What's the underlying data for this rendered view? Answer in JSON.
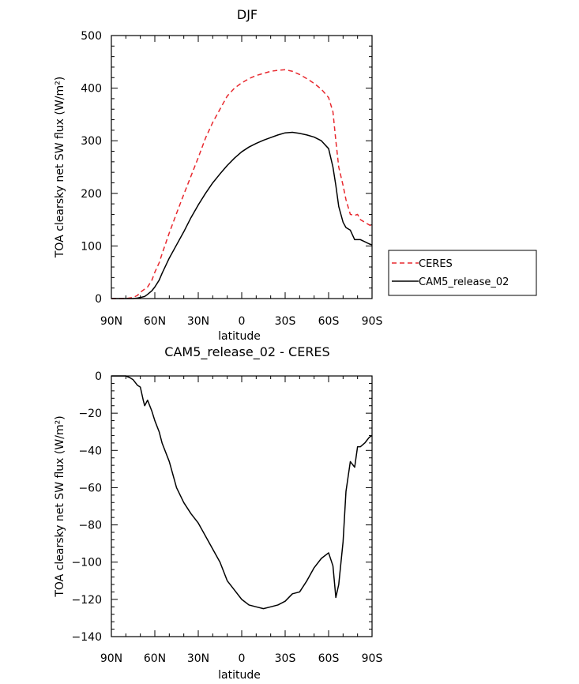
{
  "chart_data": [
    {
      "type": "line",
      "title": "DJF",
      "xlabel": "latitude",
      "ylabel": "TOA clearsky net SW flux (W/m²)",
      "xlim": [
        90,
        -90
      ],
      "ylim": [
        0,
        500
      ],
      "xticks": [
        90,
        60,
        30,
        0,
        -30,
        -60,
        -90
      ],
      "xtick_labels": [
        "90N",
        "60N",
        "30N",
        "0",
        "30S",
        "60S",
        "90S"
      ],
      "yticks": [
        0,
        100,
        200,
        300,
        400,
        500
      ],
      "ytick_labels": [
        "0",
        "100",
        "200",
        "300",
        "400",
        "500"
      ],
      "legend": {
        "placement": "right-outside-bottom"
      },
      "series": [
        {
          "name": "CERES",
          "color": "#e8282e",
          "style": "dashed",
          "x": [
            90,
            85,
            80,
            75,
            72,
            70,
            67,
            65,
            62,
            60,
            57,
            55,
            50,
            45,
            40,
            35,
            30,
            25,
            20,
            15,
            10,
            5,
            0,
            -5,
            -10,
            -15,
            -20,
            -25,
            -30,
            -35,
            -40,
            -45,
            -50,
            -55,
            -60,
            -63,
            -65,
            -67,
            -70,
            -72,
            -75,
            -78,
            -80,
            -82,
            -85,
            -88,
            -90
          ],
          "y": [
            0,
            0,
            0,
            2,
            6,
            12,
            18,
            22,
            35,
            50,
            68,
            85,
            125,
            162,
            198,
            233,
            268,
            305,
            335,
            360,
            385,
            400,
            410,
            418,
            424,
            428,
            432,
            434,
            435,
            432,
            426,
            418,
            409,
            398,
            382,
            355,
            300,
            250,
            215,
            188,
            160,
            158,
            160,
            150,
            145,
            140,
            138
          ]
        },
        {
          "name": "CAM5_release_02",
          "color": "#000000",
          "style": "solid",
          "x": [
            90,
            85,
            80,
            75,
            72,
            70,
            67,
            65,
            62,
            60,
            57,
            55,
            50,
            45,
            40,
            35,
            30,
            25,
            20,
            15,
            10,
            5,
            0,
            -5,
            -10,
            -15,
            -20,
            -25,
            -30,
            -35,
            -40,
            -45,
            -50,
            -55,
            -60,
            -63,
            -65,
            -67,
            -70,
            -72,
            -75,
            -78,
            -80,
            -82,
            -85,
            -88,
            -90
          ],
          "y": [
            0,
            0,
            0,
            0,
            1,
            2,
            4,
            8,
            15,
            22,
            35,
            48,
            77,
            102,
            127,
            154,
            178,
            200,
            220,
            237,
            253,
            267,
            279,
            288,
            295,
            301,
            306,
            311,
            315,
            316,
            314,
            311,
            307,
            300,
            285,
            250,
            215,
            175,
            145,
            135,
            130,
            112,
            112,
            112,
            108,
            104,
            102
          ]
        }
      ]
    },
    {
      "type": "line",
      "title": "CAM5_release_02 - CERES",
      "xlabel": "latitude",
      "ylabel": "TOA clearsky net SW flux (W/m²)",
      "xlim": [
        90,
        -90
      ],
      "ylim": [
        -140,
        0
      ],
      "xticks": [
        90,
        60,
        30,
        0,
        -30,
        -60,
        -90
      ],
      "xtick_labels": [
        "90N",
        "60N",
        "30N",
        "0",
        "30S",
        "60S",
        "90S"
      ],
      "yticks": [
        0,
        -20,
        -40,
        -60,
        -80,
        -100,
        -120,
        -140
      ],
      "ytick_labels": [
        "0",
        "−20",
        "−40",
        "−60",
        "−80",
        "−100",
        "−120",
        "−140"
      ],
      "series": [
        {
          "name": "",
          "color": "#000000",
          "style": "solid",
          "x": [
            90,
            85,
            80,
            77,
            75,
            72,
            70,
            68,
            67,
            65,
            62,
            60,
            57,
            55,
            50,
            45,
            40,
            35,
            30,
            25,
            20,
            15,
            10,
            5,
            0,
            -5,
            -10,
            -15,
            -20,
            -25,
            -30,
            -35,
            -40,
            -45,
            -50,
            -55,
            -60,
            -63,
            -65,
            -67,
            -70,
            -72,
            -75,
            -78,
            -80,
            -82,
            -85,
            -88,
            -90
          ],
          "y": [
            0,
            0,
            0,
            -1,
            -2,
            -5,
            -6,
            -13,
            -16,
            -13,
            -19,
            -24,
            -30,
            -36,
            -46,
            -60,
            -68,
            -74,
            -79,
            -86,
            -93,
            -100,
            -110,
            -115,
            -120,
            -123,
            -124,
            -125,
            -124,
            -123,
            -121,
            -117,
            -116,
            -110,
            -103,
            -98,
            -95,
            -102,
            -119,
            -112,
            -89,
            -62,
            -46,
            -49,
            -38,
            -38,
            -36,
            -33,
            -32
          ]
        }
      ]
    }
  ]
}
